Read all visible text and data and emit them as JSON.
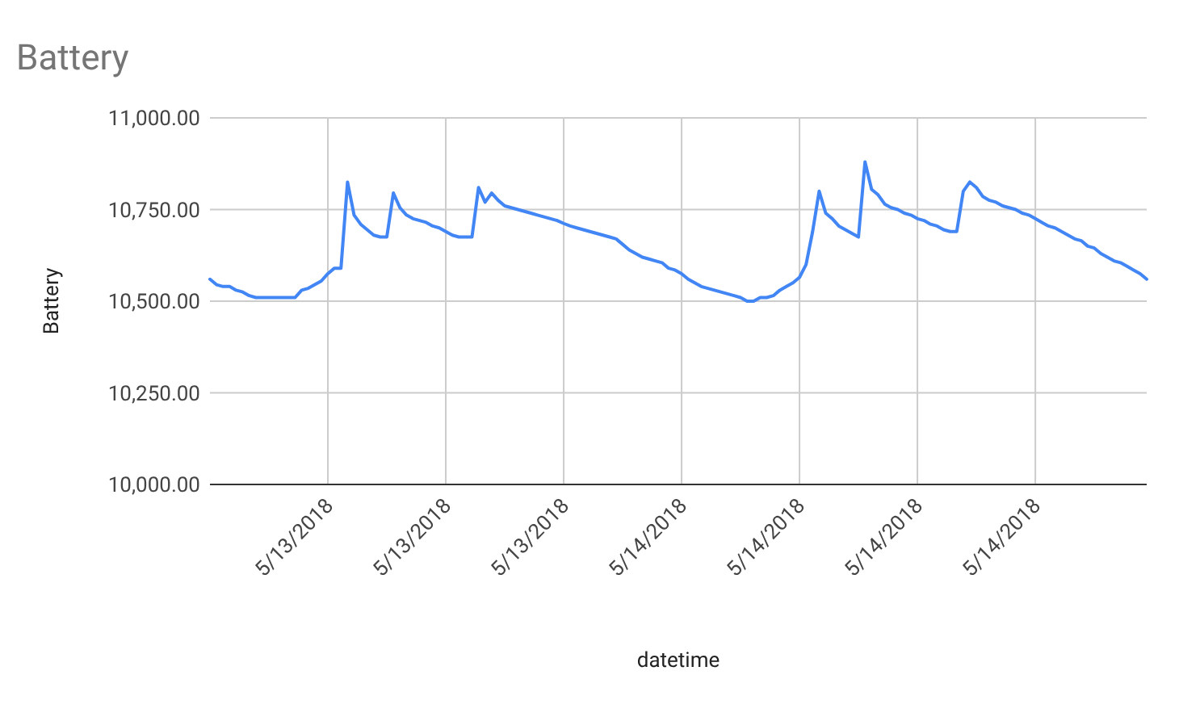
{
  "chart_data": {
    "type": "line",
    "title": "Battery",
    "xlabel": "datetime",
    "ylabel": "Battery",
    "categories": [
      null,
      null,
      null,
      null,
      null,
      null,
      null,
      null,
      null,
      null,
      null,
      null,
      null,
      null,
      null,
      null,
      null,
      null,
      "5/13/2018",
      null,
      null,
      null,
      null,
      null,
      null,
      null,
      null,
      null,
      null,
      null,
      null,
      null,
      null,
      null,
      null,
      null,
      "5/13/2018",
      null,
      null,
      null,
      null,
      null,
      null,
      null,
      null,
      null,
      null,
      null,
      null,
      null,
      null,
      null,
      null,
      null,
      "5/13/2018",
      null,
      null,
      null,
      null,
      null,
      null,
      null,
      null,
      null,
      null,
      null,
      null,
      null,
      null,
      null,
      null,
      null,
      "5/14/2018",
      null,
      null,
      null,
      null,
      null,
      null,
      null,
      null,
      null,
      null,
      null,
      null,
      null,
      null,
      null,
      null,
      null,
      "5/14/2018",
      null,
      null,
      null,
      null,
      null,
      null,
      null,
      null,
      null,
      null,
      null,
      null,
      null,
      null,
      null,
      null,
      null,
      "5/14/2018",
      null,
      null,
      null,
      null,
      null,
      null,
      null,
      null,
      null,
      null,
      null,
      null,
      null,
      null,
      null,
      null,
      null,
      "5/14/2018",
      null,
      null,
      null,
      null,
      null,
      null,
      null,
      null,
      null,
      null,
      null,
      null,
      null,
      null,
      null,
      null,
      null
    ],
    "series": [
      {
        "color": "#4285f4",
        "values": [
          10560,
          10545,
          10540,
          10540,
          10530,
          10525,
          10515,
          10510,
          10510,
          10510,
          10510,
          10510,
          10510,
          10510,
          10530,
          10535,
          10545,
          10555,
          10575,
          10590,
          10590,
          10825,
          10735,
          10710,
          10695,
          10680,
          10675,
          10675,
          10795,
          10755,
          10735,
          10725,
          10720,
          10715,
          10705,
          10700,
          10690,
          10680,
          10675,
          10675,
          10675,
          10810,
          10770,
          10795,
          10775,
          10760,
          10755,
          10750,
          10745,
          10740,
          10735,
          10730,
          10725,
          10720,
          10712,
          10705,
          10700,
          10695,
          10690,
          10685,
          10680,
          10675,
          10670,
          10655,
          10640,
          10630,
          10620,
          10615,
          10610,
          10605,
          10590,
          10585,
          10575,
          10560,
          10550,
          10540,
          10535,
          10530,
          10525,
          10520,
          10515,
          10510,
          10500,
          10500,
          10510,
          10510,
          10515,
          10530,
          10540,
          10550,
          10565,
          10600,
          10690,
          10800,
          10740,
          10725,
          10705,
          10695,
          10685,
          10675,
          10880,
          10805,
          10790,
          10765,
          10755,
          10750,
          10740,
          10735,
          10725,
          10720,
          10710,
          10705,
          10695,
          10690,
          10690,
          10800,
          10825,
          10810,
          10785,
          10775,
          10770,
          10760,
          10755,
          10750,
          10740,
          10735,
          10725,
          10715,
          10705,
          10700,
          10690,
          10680,
          10670,
          10665,
          10650,
          10645,
          10630,
          10620,
          10610,
          10605,
          10595,
          10585,
          10575,
          10560
        ]
      }
    ],
    "ylim": [
      10000,
      11000
    ],
    "yticks": [
      {
        "value": 10000,
        "label": "10,000.00"
      },
      {
        "value": 10250,
        "label": "10,250.00"
      },
      {
        "value": 10500,
        "label": "10,500.00"
      },
      {
        "value": 10750,
        "label": "10,750.00"
      },
      {
        "value": 11000,
        "label": "11,000.00"
      }
    ],
    "grid": true
  }
}
